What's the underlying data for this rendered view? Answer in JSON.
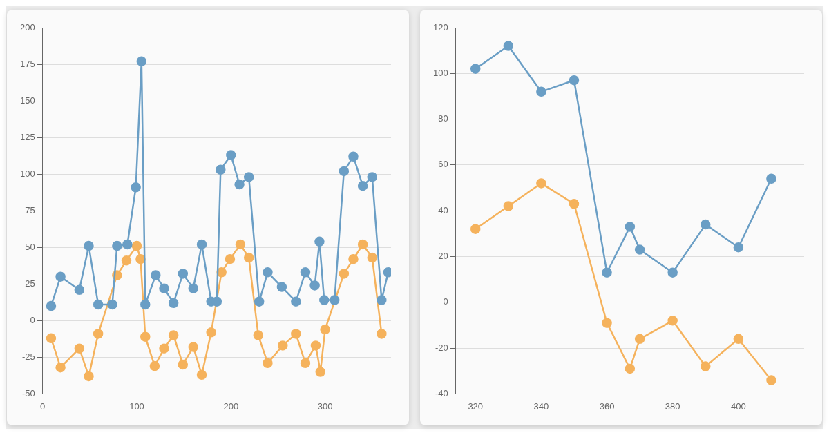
{
  "chart_data": [
    {
      "type": "line",
      "x": [
        9,
        19,
        39,
        49,
        59,
        74,
        79,
        90,
        99,
        105,
        109,
        120,
        129,
        139,
        149,
        160,
        169,
        179,
        185,
        189,
        200,
        209,
        219,
        230,
        239,
        254,
        269,
        279,
        289,
        294,
        299,
        310,
        320,
        330,
        340,
        350,
        360,
        367
      ],
      "xlim": [
        0,
        370
      ],
      "xticks": [
        0,
        100,
        200,
        300
      ],
      "ylim": [
        -50,
        200
      ],
      "yticks": [
        -50,
        -25,
        0,
        25,
        50,
        75,
        100,
        125,
        150,
        175,
        200
      ],
      "grid": "y",
      "marker": "circle",
      "legend": false,
      "series": [
        {
          "color": "#6a9ec5",
          "values": [
            10,
            30,
            21,
            51,
            11,
            11,
            51,
            52,
            91,
            177,
            11,
            31,
            22,
            12,
            32,
            22,
            52,
            13,
            13,
            103,
            113,
            93,
            98,
            13,
            33,
            23,
            13,
            33,
            24,
            54,
            14,
            14,
            102,
            112,
            92,
            98,
            14,
            33
          ]
        },
        {
          "color": "#f5b25c",
          "x": [
            9,
            19,
            39,
            49,
            59,
            79,
            89,
            100,
            104,
            109,
            119,
            129,
            139,
            149,
            160,
            169,
            179,
            190,
            199,
            210,
            219,
            229,
            239,
            255,
            269,
            279,
            290,
            295,
            300,
            320,
            330,
            340,
            350,
            360
          ],
          "values": [
            -12,
            -32,
            -19,
            -38,
            -9,
            31,
            41,
            51,
            42,
            -11,
            -31,
            -19,
            -10,
            -30,
            -18,
            -37,
            -8,
            33,
            42,
            52,
            43,
            -10,
            -29,
            -17,
            -9,
            -29,
            -17,
            -35,
            -6,
            32,
            42,
            52,
            43,
            -9
          ]
        }
      ]
    },
    {
      "type": "line",
      "x": [
        320,
        330,
        340,
        350,
        360,
        367,
        370,
        380,
        390,
        400,
        410
      ],
      "xlim": [
        314,
        420
      ],
      "xticks": [
        320,
        340,
        360,
        380,
        400
      ],
      "ylim": [
        -40,
        120
      ],
      "yticks": [
        -40,
        -20,
        0,
        20,
        40,
        60,
        80,
        100,
        120
      ],
      "grid": "y",
      "marker": "circle",
      "legend": false,
      "series": [
        {
          "color": "#6a9ec5",
          "values": [
            102,
            112,
            92,
            97,
            13,
            33,
            23,
            13,
            34,
            24,
            54
          ]
        },
        {
          "color": "#f5b25c",
          "values": [
            32,
            42,
            52,
            43,
            -9,
            -29,
            -16,
            -8,
            -28,
            -16,
            -34
          ]
        }
      ]
    }
  ]
}
